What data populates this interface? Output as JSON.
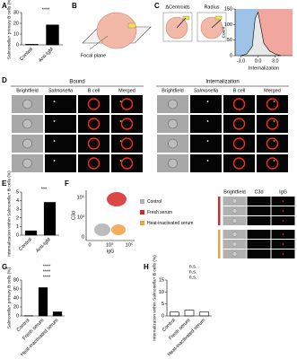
{
  "panel_letters": [
    "A",
    "B",
    "C",
    "D",
    "E",
    "F",
    "G",
    "H"
  ],
  "b": {
    "focal_plane": "Focal plane"
  },
  "c": {
    "labels": [
      "ΔCentroids",
      "Radius"
    ]
  },
  "d": {
    "groups": [
      {
        "title": "Bound",
        "columns": [
          "Brightfield",
          "Salmonella",
          "B cell",
          "Merged"
        ]
      },
      {
        "title": "Internalization",
        "columns": [
          "Brightfield",
          "Salmonella",
          "B cell",
          "Merged"
        ]
      }
    ]
  },
  "f": {
    "legend": [
      {
        "name": "Control",
        "color": "#b0b0b0"
      },
      {
        "name": "Fresh serum",
        "color": "#d62728"
      },
      {
        "name": "Heat-inactivated serum",
        "color": "#f0a040"
      }
    ],
    "x_label": "IgG",
    "y_label": "C3d",
    "xticks": [
      "0",
      "10³",
      "10⁵"
    ],
    "yticks": [
      "0",
      "10³",
      "10⁵"
    ],
    "image_columns": [
      "Brightfield",
      "C3d",
      "IgG"
    ]
  },
  "chart_data": [
    {
      "type": "bar",
      "y_label": "Salmonella+ primary B cells (%)",
      "categories": [
        "Control",
        "Anti-IgM"
      ],
      "values": [
        0.5,
        18.5
      ],
      "color": "#000000",
      "ylim": [
        0,
        30
      ],
      "yticks": [
        0,
        10,
        20,
        30
      ],
      "annotations": [
        "****"
      ]
    },
    {
      "type": "area",
      "x_label": "Internalization",
      "y_label": "Count",
      "x": [
        -3,
        -2,
        -1,
        -0.5,
        0,
        0.5,
        1,
        2,
        3,
        4
      ],
      "values": [
        0,
        5,
        30,
        120,
        140,
        90,
        40,
        15,
        5,
        0
      ],
      "color": "#e8e8e8",
      "xlim": [
        -4,
        6
      ],
      "ylim": [
        0,
        150
      ],
      "xticks": [
        {
          "value": -3,
          "label": "-3.0"
        },
        {
          "value": 0,
          "label": "0.0"
        },
        {
          "value": 3,
          "label": "3.0"
        }
      ],
      "yticks": [
        0,
        50,
        100,
        150
      ]
    },
    {
      "type": "bar",
      "y_label": "Internalization within Salmonella+ B cells (%)",
      "categories": [
        "Control",
        "Anti-IgM"
      ],
      "values": [
        0.5,
        3.8
      ],
      "color": "#000000",
      "ylim": [
        0,
        5
      ],
      "yticks": [
        0,
        1,
        2,
        3,
        4,
        5
      ],
      "annotations": [
        "***"
      ]
    },
    {
      "type": "bar",
      "y_label": "Salmonella+ primary B cells (%)",
      "categories": [
        "Control",
        "Fresh serum",
        "Heat-inactivated serum"
      ],
      "values": [
        0.5,
        63,
        9
      ],
      "color": "#000000",
      "ylim": [
        0,
        80
      ],
      "yticks": [
        0,
        20,
        40,
        60,
        80
      ],
      "annotations": [
        "****",
        "****",
        "****"
      ]
    },
    {
      "type": "bar",
      "y_label": "Internalization within Salmonella+ B cells (%)",
      "categories": [
        "Control",
        "Fresh serum",
        "Heat-inactivated serum"
      ],
      "values": [
        1.6,
        2.4,
        1.6
      ],
      "color": "#ffffff",
      "ylim": [
        0,
        15
      ],
      "yticks": [
        0,
        5,
        10,
        15
      ],
      "annotations": [
        "n.s.",
        "n.s.",
        "n.s."
      ]
    }
  ]
}
